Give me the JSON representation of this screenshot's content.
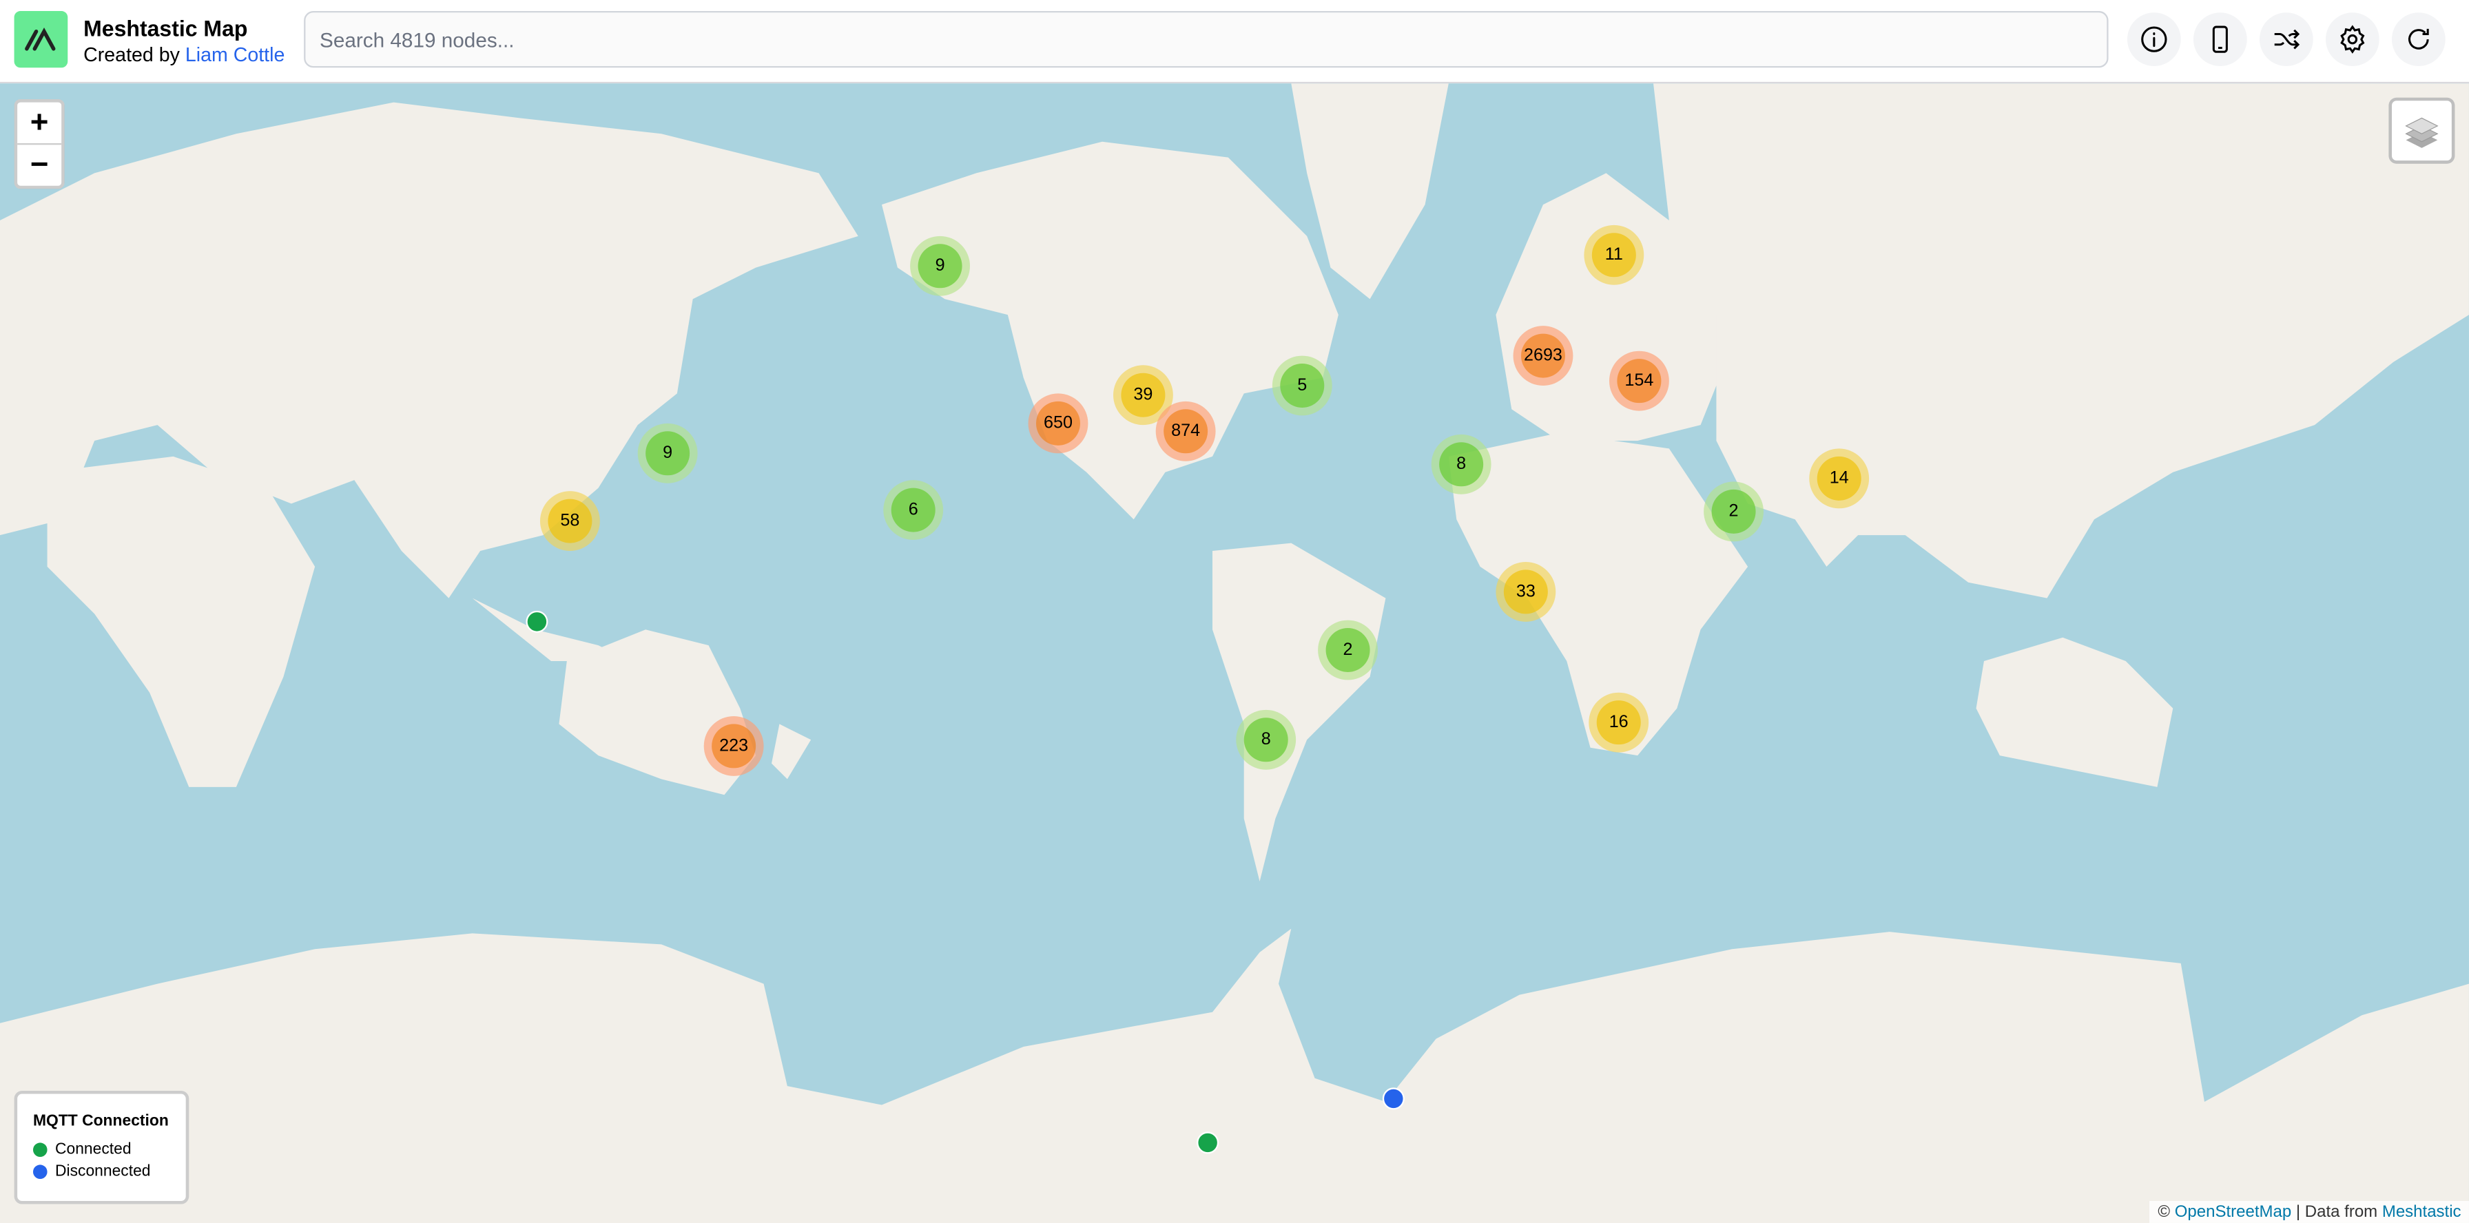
{
  "header": {
    "title": "Meshtastic Map",
    "subtitle_prefix": "Created by ",
    "author": "Liam Cottle",
    "search_placeholder": "Search 4819 nodes...",
    "buttons": [
      {
        "icon": "info-icon"
      },
      {
        "icon": "phone-icon"
      },
      {
        "icon": "shuffle-icon"
      },
      {
        "icon": "gear-icon"
      },
      {
        "icon": "refresh-icon"
      }
    ]
  },
  "map": {
    "zoom_in": "+",
    "zoom_out": "−",
    "clusters": [
      "9",
      "11",
      "2693",
      "154",
      "5",
      "39",
      "650",
      "874",
      "9",
      "8",
      "14",
      "58",
      "6",
      "2",
      "33",
      "2",
      "223",
      "8",
      "16"
    ],
    "colors": {
      "water": "#aad3df",
      "land": "#f2efe9",
      "connected": "#16a34a",
      "disconnected": "#2563eb"
    }
  },
  "legend": {
    "title": "MQTT Connection",
    "items": [
      {
        "label": "Connected",
        "color": "#16a34a"
      },
      {
        "label": "Disconnected",
        "color": "#2563eb"
      }
    ]
  },
  "attribution": {
    "prefix": "© ",
    "osm": "OpenStreetMap",
    "sep": " | Data from ",
    "meshtastic": "Meshtastic"
  }
}
